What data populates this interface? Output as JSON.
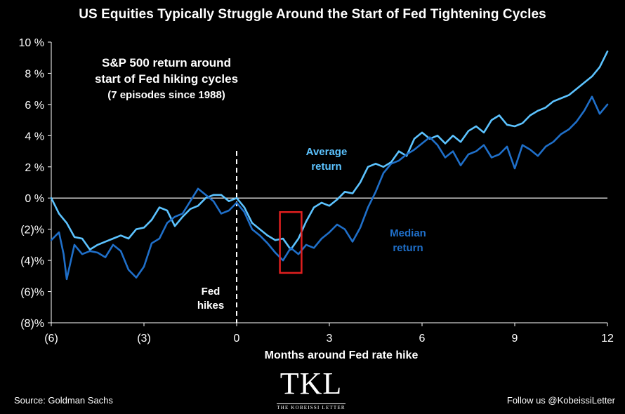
{
  "title": "US Equities Typically Struggle Around the Start of Fed Tightening Cycles",
  "footer": {
    "source": "Source: Goldman Sachs",
    "follow": "Follow us @KobeissiLetter"
  },
  "logo": {
    "mark": "TKL",
    "name": "THE KOBEISSI LETTER"
  },
  "colors": {
    "average": "#5cc3ff",
    "median": "#1f6fc9",
    "highlight_box": "#e01f1f",
    "zero_line": "#ffffff",
    "axis": "#ffffff"
  },
  "chart_data": {
    "type": "line",
    "xlabel": "Months around Fed rate hike",
    "ylabel": "",
    "xlim": [
      -6,
      12
    ],
    "ylim": [
      -8,
      10
    ],
    "x_ticks": [
      -6,
      -3,
      0,
      3,
      6,
      9,
      12
    ],
    "x_tick_labels": [
      "(6)",
      "(3)",
      "0",
      "3",
      "6",
      "9",
      "12"
    ],
    "y_ticks": [
      10,
      8,
      6,
      4,
      2,
      0,
      -2,
      -4,
      -6,
      -8
    ],
    "y_tick_labels": [
      "10 %",
      "8 %",
      "6 %",
      "4 %",
      "2 %",
      "0 %",
      "(2)%",
      "(4)%",
      "(6)%",
      "(8)%"
    ],
    "annotations": {
      "heading_line1": "S&P 500 return around",
      "heading_line2": "start of Fed hiking cycles",
      "heading_line3": "(7 episodes since 1988)",
      "fed_hikes_line1": "Fed",
      "fed_hikes_line2": "hikes",
      "average_label_line1": "Average",
      "average_label_line2": "return",
      "median_label_line1": "Median",
      "median_label_line2": "return"
    },
    "vertical_marker_x": 0,
    "highlight_range": {
      "x": [
        1.4,
        2.1
      ],
      "y": [
        -4.8,
        -0.9
      ]
    },
    "series": [
      {
        "name": "Average return",
        "color": "#5cc3ff",
        "points": [
          [
            -6.0,
            0.0
          ],
          [
            -5.75,
            -1.0
          ],
          [
            -5.5,
            -1.6
          ],
          [
            -5.25,
            -2.5
          ],
          [
            -5.0,
            -2.6
          ],
          [
            -4.75,
            -3.3
          ],
          [
            -4.5,
            -3.0
          ],
          [
            -4.25,
            -2.8
          ],
          [
            -4.0,
            -2.6
          ],
          [
            -3.75,
            -2.4
          ],
          [
            -3.5,
            -2.6
          ],
          [
            -3.25,
            -2.0
          ],
          [
            -3.0,
            -1.9
          ],
          [
            -2.75,
            -1.4
          ],
          [
            -2.5,
            -0.6
          ],
          [
            -2.25,
            -0.8
          ],
          [
            -2.0,
            -1.8
          ],
          [
            -1.75,
            -1.2
          ],
          [
            -1.5,
            -0.7
          ],
          [
            -1.25,
            -0.5
          ],
          [
            -1.0,
            0.0
          ],
          [
            -0.75,
            0.2
          ],
          [
            -0.5,
            0.2
          ],
          [
            -0.25,
            -0.2
          ],
          [
            0.0,
            0.0
          ],
          [
            0.25,
            -0.6
          ],
          [
            0.5,
            -1.6
          ],
          [
            0.75,
            -2.0
          ],
          [
            1.0,
            -2.4
          ],
          [
            1.25,
            -2.7
          ],
          [
            1.5,
            -2.6
          ],
          [
            1.75,
            -3.3
          ],
          [
            2.0,
            -2.6
          ],
          [
            2.25,
            -1.5
          ],
          [
            2.5,
            -0.6
          ],
          [
            2.75,
            -0.3
          ],
          [
            3.0,
            -0.5
          ],
          [
            3.25,
            -0.1
          ],
          [
            3.5,
            0.4
          ],
          [
            3.75,
            0.3
          ],
          [
            4.0,
            1.0
          ],
          [
            4.25,
            2.0
          ],
          [
            4.5,
            2.2
          ],
          [
            4.75,
            2.0
          ],
          [
            5.0,
            2.3
          ],
          [
            5.25,
            3.0
          ],
          [
            5.5,
            2.7
          ],
          [
            5.75,
            3.8
          ],
          [
            6.0,
            4.2
          ],
          [
            6.25,
            3.8
          ],
          [
            6.5,
            4.0
          ],
          [
            6.75,
            3.5
          ],
          [
            7.0,
            4.0
          ],
          [
            7.25,
            3.6
          ],
          [
            7.5,
            4.3
          ],
          [
            7.75,
            4.6
          ],
          [
            8.0,
            4.2
          ],
          [
            8.25,
            5.0
          ],
          [
            8.5,
            5.3
          ],
          [
            8.75,
            4.7
          ],
          [
            9.0,
            4.6
          ],
          [
            9.25,
            4.8
          ],
          [
            9.5,
            5.3
          ],
          [
            9.75,
            5.6
          ],
          [
            10.0,
            5.8
          ],
          [
            10.25,
            6.2
          ],
          [
            10.5,
            6.4
          ],
          [
            10.75,
            6.6
          ],
          [
            11.0,
            7.0
          ],
          [
            11.25,
            7.4
          ],
          [
            11.5,
            7.8
          ],
          [
            11.75,
            8.4
          ],
          [
            12.0,
            9.4
          ]
        ]
      },
      {
        "name": "Median return",
        "color": "#1f6fc9",
        "points": [
          [
            -6.0,
            -2.7
          ],
          [
            -5.75,
            -2.2
          ],
          [
            -5.6,
            -3.6
          ],
          [
            -5.5,
            -5.2
          ],
          [
            -5.25,
            -3.0
          ],
          [
            -5.0,
            -3.6
          ],
          [
            -4.75,
            -3.4
          ],
          [
            -4.5,
            -3.5
          ],
          [
            -4.25,
            -3.8
          ],
          [
            -4.0,
            -3.0
          ],
          [
            -3.75,
            -3.4
          ],
          [
            -3.5,
            -4.6
          ],
          [
            -3.25,
            -5.1
          ],
          [
            -3.0,
            -4.4
          ],
          [
            -2.75,
            -2.9
          ],
          [
            -2.5,
            -2.6
          ],
          [
            -2.25,
            -1.6
          ],
          [
            -2.0,
            -1.2
          ],
          [
            -1.75,
            -1.0
          ],
          [
            -1.5,
            -0.2
          ],
          [
            -1.25,
            0.6
          ],
          [
            -1.0,
            0.2
          ],
          [
            -0.75,
            -0.2
          ],
          [
            -0.5,
            -1.0
          ],
          [
            -0.25,
            -0.8
          ],
          [
            0.0,
            -0.3
          ],
          [
            0.25,
            -0.9
          ],
          [
            0.5,
            -2.0
          ],
          [
            0.75,
            -2.4
          ],
          [
            1.0,
            -2.9
          ],
          [
            1.25,
            -3.5
          ],
          [
            1.5,
            -4.0
          ],
          [
            1.75,
            -3.2
          ],
          [
            2.0,
            -3.6
          ],
          [
            2.25,
            -3.0
          ],
          [
            2.5,
            -3.2
          ],
          [
            2.75,
            -2.6
          ],
          [
            3.0,
            -2.2
          ],
          [
            3.25,
            -1.7
          ],
          [
            3.5,
            -2.0
          ],
          [
            3.75,
            -2.8
          ],
          [
            4.0,
            -1.9
          ],
          [
            4.25,
            -0.6
          ],
          [
            4.5,
            0.4
          ],
          [
            4.75,
            1.6
          ],
          [
            5.0,
            2.2
          ],
          [
            5.25,
            2.4
          ],
          [
            5.5,
            2.8
          ],
          [
            5.75,
            3.1
          ],
          [
            6.0,
            3.5
          ],
          [
            6.25,
            3.9
          ],
          [
            6.5,
            3.4
          ],
          [
            6.75,
            2.6
          ],
          [
            7.0,
            3.0
          ],
          [
            7.25,
            2.1
          ],
          [
            7.5,
            2.8
          ],
          [
            7.75,
            3.0
          ],
          [
            8.0,
            3.4
          ],
          [
            8.25,
            2.6
          ],
          [
            8.5,
            2.8
          ],
          [
            8.75,
            3.3
          ],
          [
            9.0,
            1.9
          ],
          [
            9.25,
            3.4
          ],
          [
            9.5,
            3.1
          ],
          [
            9.75,
            2.7
          ],
          [
            10.0,
            3.3
          ],
          [
            10.25,
            3.6
          ],
          [
            10.5,
            4.1
          ],
          [
            10.75,
            4.4
          ],
          [
            11.0,
            4.9
          ],
          [
            11.25,
            5.6
          ],
          [
            11.5,
            6.5
          ],
          [
            11.75,
            5.4
          ],
          [
            12.0,
            6.0
          ]
        ]
      }
    ]
  }
}
